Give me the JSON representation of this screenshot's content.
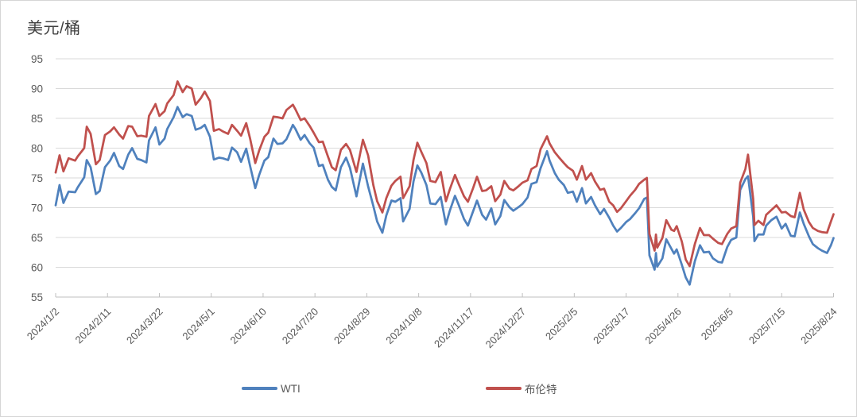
{
  "chart_data": {
    "type": "line",
    "title": "美元/桶",
    "ylabel": "美元/桶",
    "xlabel": "",
    "ylim": [
      55,
      95
    ],
    "y_ticks": [
      55,
      60,
      65,
      70,
      75,
      80,
      85,
      90,
      95
    ],
    "x_tick_labels": [
      "2024/1/2",
      "2024/2/11",
      "2024/3/22",
      "2024/5/1",
      "2024/6/10",
      "2024/7/20",
      "2024/8/29",
      "2024/10/8",
      "2024/11/17",
      "2024/12/27",
      "2025/2/5",
      "2025/3/17",
      "2025/4/26",
      "2025/6/5",
      "2025/7/15",
      "2025/8/24"
    ],
    "x_tick_days": [
      0,
      40,
      80,
      120,
      160,
      200,
      240,
      280,
      320,
      360,
      400,
      440,
      480,
      520,
      560,
      600
    ],
    "x_total_days": 600,
    "grid": "horizontal",
    "legend_position": "bottom",
    "days": [
      0,
      3,
      6,
      10,
      15,
      17,
      22,
      24,
      27,
      31,
      34,
      38,
      42,
      45,
      49,
      52,
      56,
      59,
      63,
      66,
      70,
      72,
      77,
      80,
      84,
      86,
      91,
      94,
      98,
      101,
      105,
      108,
      112,
      115,
      119,
      122,
      126,
      129,
      133,
      136,
      140,
      143,
      147,
      150,
      154,
      157,
      161,
      164,
      168,
      171,
      175,
      178,
      183,
      185,
      189,
      192,
      196,
      199,
      203,
      206,
      210,
      213,
      216,
      220,
      224,
      227,
      232,
      237,
      241,
      245,
      248,
      252,
      255,
      259,
      262,
      266,
      268,
      273,
      276,
      279,
      282,
      286,
      289,
      293,
      297,
      301,
      304,
      308,
      311,
      315,
      318,
      322,
      325,
      329,
      332,
      336,
      339,
      343,
      346,
      350,
      353,
      357,
      360,
      364,
      367,
      371,
      374,
      379,
      381,
      385,
      388,
      392,
      395,
      399,
      402,
      406,
      409,
      413,
      416,
      420,
      423,
      427,
      430,
      433,
      436,
      440,
      443,
      447,
      450,
      454,
      456,
      458,
      462,
      463,
      464,
      468,
      471,
      475,
      477,
      479,
      483,
      486,
      489,
      493,
      497,
      500,
      504,
      507,
      511,
      514,
      518,
      521,
      525,
      528,
      532,
      534,
      538,
      539,
      542,
      546,
      548,
      552,
      556,
      560,
      563,
      567,
      570,
      574,
      577,
      581,
      584,
      588,
      591,
      595,
      598,
      600
    ],
    "series": [
      {
        "name": "WTI",
        "color": "#4F81BD",
        "values": [
          70.4,
          73.8,
          70.8,
          72.7,
          72.6,
          73.4,
          75.1,
          78.0,
          76.8,
          72.3,
          72.8,
          76.8,
          77.9,
          79.2,
          77.0,
          76.5,
          78.9,
          80.0,
          78.2,
          78.0,
          77.6,
          81.3,
          83.5,
          80.6,
          81.6,
          83.2,
          85.2,
          86.9,
          85.2,
          85.7,
          85.4,
          83.1,
          83.4,
          83.9,
          81.9,
          78.1,
          78.4,
          78.3,
          78.0,
          80.1,
          79.3,
          77.7,
          79.9,
          77.0,
          73.3,
          75.5,
          77.9,
          78.5,
          81.6,
          80.7,
          80.8,
          81.5,
          83.9,
          83.2,
          81.4,
          82.2,
          80.8,
          80.1,
          77.0,
          77.2,
          74.7,
          73.5,
          72.9,
          76.8,
          78.4,
          76.7,
          71.9,
          77.4,
          73.6,
          70.3,
          67.7,
          65.8,
          68.7,
          71.2,
          71.0,
          71.6,
          67.7,
          69.8,
          74.4,
          77.1,
          75.9,
          73.8,
          70.7,
          70.6,
          71.8,
          67.2,
          69.5,
          72.0,
          70.4,
          68.1,
          67.0,
          69.4,
          71.2,
          68.8,
          68.0,
          69.9,
          67.2,
          68.6,
          71.3,
          70.1,
          69.5,
          70.1,
          70.6,
          71.7,
          74.0,
          74.3,
          76.6,
          79.5,
          77.9,
          75.8,
          74.7,
          73.8,
          72.5,
          72.7,
          71.0,
          73.3,
          70.7,
          71.8,
          70.4,
          68.9,
          69.8,
          68.3,
          67.0,
          66.0,
          66.6,
          67.6,
          68.1,
          69.1,
          69.9,
          71.5,
          71.7,
          62.0,
          59.6,
          62.4,
          60.1,
          61.5,
          64.7,
          63.1,
          62.3,
          63.0,
          60.4,
          58.3,
          57.1,
          61.0,
          63.7,
          62.5,
          62.6,
          61.5,
          60.9,
          60.8,
          63.4,
          64.6,
          65.0,
          73.0,
          74.8,
          75.3,
          68.5,
          64.4,
          65.5,
          65.5,
          67.0,
          67.9,
          68.5,
          66.5,
          67.3,
          65.3,
          65.2,
          69.2,
          67.3,
          65.2,
          63.9,
          63.2,
          62.8,
          62.4,
          63.7,
          64.9
        ]
      },
      {
        "name": "布伦特",
        "color": "#C0504D",
        "values": [
          75.9,
          78.8,
          76.1,
          78.3,
          77.9,
          78.6,
          80.0,
          83.6,
          82.4,
          77.3,
          78.0,
          82.2,
          82.8,
          83.5,
          82.3,
          81.6,
          83.7,
          83.6,
          82.0,
          82.1,
          81.9,
          85.4,
          87.4,
          85.4,
          86.2,
          87.5,
          88.9,
          91.2,
          89.4,
          90.4,
          90.0,
          87.3,
          88.4,
          89.5,
          87.9,
          82.9,
          83.2,
          82.8,
          82.4,
          83.9,
          82.9,
          82.1,
          84.2,
          81.6,
          77.5,
          79.6,
          81.9,
          82.6,
          85.3,
          85.2,
          85.0,
          86.4,
          87.3,
          86.5,
          84.7,
          85.0,
          83.7,
          82.6,
          81.0,
          81.1,
          78.6,
          76.8,
          76.3,
          79.7,
          80.7,
          79.7,
          76.0,
          81.4,
          78.8,
          73.8,
          71.1,
          69.2,
          71.6,
          73.7,
          74.5,
          75.2,
          71.6,
          73.6,
          78.0,
          80.9,
          79.4,
          77.5,
          74.5,
          74.3,
          76.0,
          71.1,
          73.1,
          75.5,
          73.9,
          71.9,
          71.0,
          73.3,
          75.2,
          72.8,
          72.9,
          73.6,
          71.1,
          72.2,
          74.5,
          73.2,
          72.9,
          73.6,
          74.2,
          74.6,
          76.5,
          77.0,
          79.8,
          82.0,
          80.8,
          79.3,
          78.5,
          77.5,
          76.8,
          76.2,
          74.7,
          77.0,
          74.7,
          75.8,
          74.4,
          73.0,
          73.2,
          71.0,
          70.4,
          69.3,
          69.9,
          71.1,
          72.0,
          73.0,
          74.0,
          74.7,
          75.0,
          65.6,
          62.8,
          65.5,
          63.3,
          64.9,
          67.9,
          66.3,
          66.1,
          66.9,
          64.3,
          61.3,
          60.2,
          63.9,
          66.6,
          65.4,
          65.4,
          64.8,
          64.1,
          63.9,
          65.6,
          66.5,
          66.9,
          74.2,
          76.5,
          78.9,
          71.5,
          67.1,
          67.8,
          67.1,
          68.8,
          69.6,
          70.4,
          69.2,
          69.3,
          68.6,
          68.4,
          72.5,
          69.7,
          67.6,
          66.6,
          66.1,
          65.9,
          65.8,
          67.7,
          68.9
        ]
      }
    ]
  },
  "colors": {
    "background": "#FFFFFF",
    "border": "#D6D6D6",
    "gridline": "#D9D9D9",
    "axis_line": "#BFBFBF",
    "tick_label": "#595959",
    "title_text": "#404040"
  }
}
